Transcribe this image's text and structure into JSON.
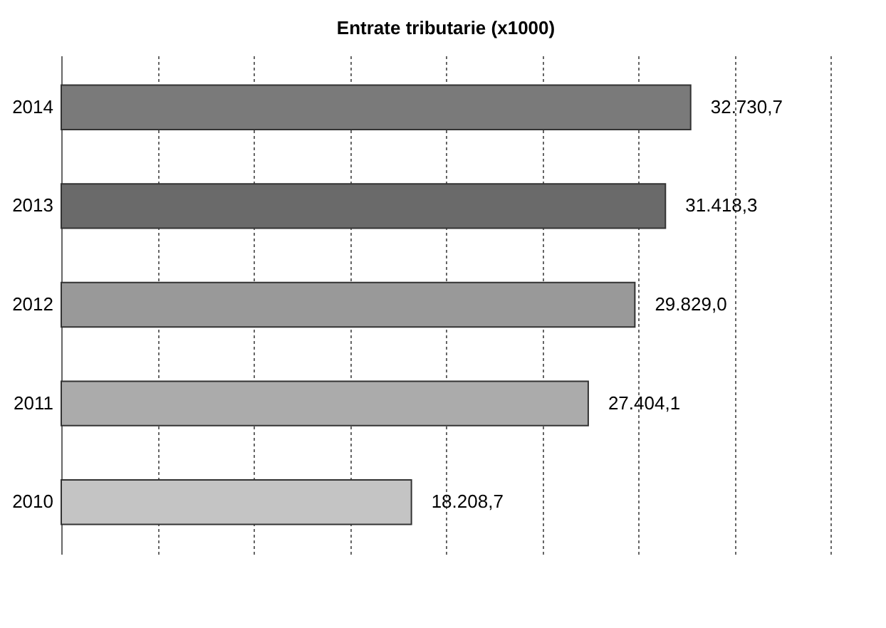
{
  "chart_data": {
    "type": "bar",
    "orientation": "horizontal",
    "title": "Entrate tributarie (x1000)",
    "categories": [
      "2014",
      "2013",
      "2012",
      "2011",
      "2010"
    ],
    "values": [
      32730.7,
      31418.3,
      29829.0,
      27404.1,
      18208.7
    ],
    "value_labels": [
      "32.730,7",
      "31.418,3",
      "29.829,0",
      "27.404,1",
      "18.208,7"
    ],
    "colors": [
      "#7a7a7a",
      "#6a6a6a",
      "#999999",
      "#ababab",
      "#c4c4c4"
    ],
    "xlim": [
      0,
      40000
    ],
    "xticks": [
      {
        "value": 0,
        "label": null
      },
      {
        "value": 5000,
        "label": null
      },
      {
        "value": 10000,
        "label": null
      },
      {
        "value": 15000,
        "label": null
      },
      {
        "value": 20000,
        "label": null
      },
      {
        "value": 25000,
        "label": null
      },
      {
        "value": 30000,
        "label": null
      },
      {
        "value": 35000,
        "label": null
      },
      {
        "value": 40000,
        "label": null
      }
    ],
    "grid": "x",
    "tick_labels": "y"
  }
}
